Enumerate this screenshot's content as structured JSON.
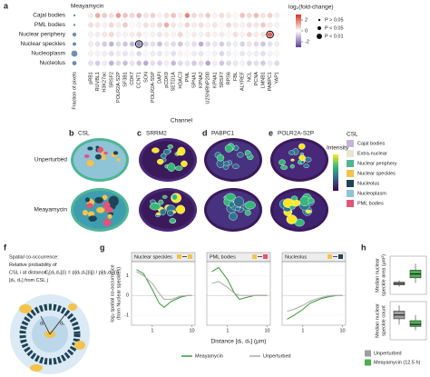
{
  "panel_a": {
    "label": "a",
    "title": "Meayamycin",
    "x_label": "Channel",
    "fraction_label": "Fraction of pixels",
    "rows": [
      "Cajal bodies",
      "PML bodies",
      "Nuclear periphery",
      "Nuclear speckles",
      "Nucleoplasm",
      "Nucleolus"
    ],
    "columns": [
      "pRB1",
      "RUVBL1",
      "H3K27ac",
      "SRSF2",
      "POLR2A-S2P",
      "SF3B1",
      "CDK7",
      "CCNT1",
      "SON",
      "POLR2A-S5P",
      "DAPI",
      "pCDK9",
      "SETD1A",
      "HDAC3",
      "PML",
      "SPNA1",
      "KPNA2",
      "U2SNRNP200",
      "KPNA1",
      "SRSF7",
      "RPS6",
      "FBL",
      "ALYREF",
      "NCL",
      "PCNA",
      "LMNB1",
      "PABPC1",
      "YAP1"
    ],
    "fraction": [
      0.05,
      0.05,
      0.3,
      0.25,
      0.6,
      0.35
    ],
    "values": [
      [
        0.3,
        1.2,
        0.8,
        0.5,
        1.5,
        0.9,
        0.6,
        1.1,
        0.4,
        0.7,
        0.2,
        0.5,
        0.9,
        0.3,
        1.8,
        0.6,
        0.4,
        0.8,
        0.2,
        0.5,
        0.3,
        0.1,
        0.9,
        0.6,
        1.0,
        0.4,
        0.7,
        0.3
      ],
      [
        0.5,
        0.4,
        0.2,
        0.6,
        0.3,
        0.8,
        0.1,
        0.2,
        0.5,
        0.3,
        0.6,
        1.2,
        0.4,
        0.2,
        0.7,
        0.3,
        0.5,
        0.2,
        0.4,
        0.1,
        0.6,
        0.3,
        0.2,
        0.5,
        0.4,
        0.8,
        0.3,
        0.2
      ],
      [
        0.2,
        -0.3,
        0.4,
        0.6,
        0.2,
        -0.2,
        0.3,
        0.5,
        0.1,
        0.2,
        -0.4,
        0.3,
        0.2,
        0.6,
        0.1,
        0.3,
        -0.2,
        0.4,
        0.2,
        0.3,
        0.1,
        0.5,
        0.2,
        0.7,
        0.3,
        0.4,
        2.3,
        0.2
      ],
      [
        -0.3,
        -0.5,
        -0.8,
        -1.2,
        -0.6,
        -0.9,
        -1.1,
        -1.8,
        -0.7,
        -0.5,
        -1.0,
        -0.4,
        -0.6,
        -0.9,
        -0.3,
        -0.5,
        -1.3,
        -0.6,
        -0.4,
        -0.8,
        -0.5,
        -0.3,
        -0.7,
        -0.4,
        -0.6,
        -0.9,
        -0.5,
        -0.3
      ],
      [
        0.2,
        -0.2,
        0.3,
        -0.5,
        -0.3,
        -0.4,
        -0.2,
        -0.6,
        -0.1,
        -0.3,
        -0.4,
        -0.2,
        -0.5,
        -0.2,
        0.1,
        -0.3,
        -0.4,
        -0.1,
        -0.2,
        -0.6,
        -0.3,
        -0.1,
        -0.4,
        -0.2,
        -0.3,
        -0.5,
        -0.2,
        -0.1
      ],
      [
        -0.5,
        -0.8,
        -0.3,
        -1.2,
        -0.6,
        -1.0,
        -0.4,
        -0.9,
        -1.3,
        -0.5,
        -0.7,
        -0.3,
        -1.1,
        -0.6,
        -0.4,
        -0.8,
        -0.5,
        -1.4,
        -0.3,
        -0.9,
        -0.6,
        -0.4,
        -0.2,
        -0.7,
        -0.5,
        -0.8,
        -0.3,
        -0.6
      ]
    ],
    "outlined": [
      [
        3,
        7
      ],
      [
        2,
        26
      ]
    ],
    "colorbar": {
      "label": "log₂(fold-change)",
      "lim": [
        -3,
        3
      ],
      "ticks": [
        2,
        0,
        -2
      ]
    },
    "p_legend": [
      "P > 0.05",
      "P < 0.05",
      "P < 0.01"
    ]
  },
  "panel_images": {
    "rows": [
      "Unperturbed",
      "Meayamycin"
    ],
    "tiles": [
      {
        "label": "b",
        "title": "CSL"
      },
      {
        "label": "c",
        "title": "SRRM2"
      },
      {
        "label": "d",
        "title": "PABPC1"
      },
      {
        "label": "e",
        "title": "POLR2A-S2P"
      }
    ],
    "intensity_label": "Intensity",
    "csl_legend": {
      "title": "CSL",
      "items": [
        {
          "name": "Cajal bodies",
          "color": "#c7b3dc"
        },
        {
          "name": "Extra-nuclear",
          "color": "#e9e4d4"
        },
        {
          "name": "Nuclear periphery",
          "color": "#4fb595"
        },
        {
          "name": "Nuclear speckles",
          "color": "#f3c34d"
        },
        {
          "name": "Nucleolus",
          "color": "#1e4457"
        },
        {
          "name": "Nucleoplasm",
          "color": "#8fc3d6"
        },
        {
          "name": "PML bodies",
          "color": "#e4537a"
        }
      ]
    }
  },
  "panel_f": {
    "label": "f",
    "lines": [
      "Spatial co-occurrence:",
      "Relative probability of",
      "CSL i at distance",
      "[dᵣ, dₛ] from CSL j"
    ],
    "formula": "Cⱼ[dᵣ,dₛ](i) = p[dᵣ,dₛ](i|j) / p[dᵣ,dₛ](i)",
    "diagram_labels": [
      "dᵣ",
      "dₛ"
    ]
  },
  "panel_g": {
    "label": "g",
    "y_label": "log₂ spatial co-occurrence",
    "y_label2": "(from Nuclear speckles)",
    "x_label": "Distance [dᵣ, dₛ] (μm)",
    "xscale": "log",
    "xlim": [
      0.3,
      12
    ],
    "xticks": [
      1,
      10
    ],
    "ylim": [
      -1.5,
      1.7
    ],
    "yticks": [
      -1,
      0,
      1
    ],
    "x": [
      0.4,
      0.6,
      1,
      1.5,
      2,
      3,
      5,
      8,
      10
    ],
    "panels": [
      {
        "title": "Nuclear speckles",
        "series": [
          {
            "name": "Meayamycin",
            "color": "#3a9a3a",
            "values": [
              1.3,
              1.1,
              0.3,
              -0.4,
              -0.6,
              -0.3,
              -0.1,
              0,
              0
            ]
          },
          {
            "name": "Unperturbed",
            "color": "#aaaaaa",
            "values": [
              1.2,
              1.0,
              0.6,
              0.1,
              -0.2,
              -0.2,
              -0.05,
              0,
              0
            ]
          }
        ]
      },
      {
        "title": "PML bodies",
        "series": [
          {
            "name": "Meayamycin",
            "color": "#3a9a3a",
            "values": [
              1.2,
              1.4,
              0.8,
              0.1,
              -0.2,
              -0.1,
              0,
              0,
              0
            ]
          },
          {
            "name": "Unperturbed",
            "color": "#aaaaaa",
            "values": [
              0.6,
              0.7,
              0.4,
              0.1,
              0,
              0,
              0,
              0,
              0
            ]
          }
        ]
      },
      {
        "title": "Nucleolus",
        "series": [
          {
            "name": "Meayamycin",
            "color": "#3a9a3a",
            "values": [
              -1.2,
              -1.0,
              -0.7,
              -0.4,
              -0.3,
              -0.15,
              -0.05,
              0,
              0
            ]
          },
          {
            "name": "Unperturbed",
            "color": "#aaaaaa",
            "values": [
              -0.8,
              -0.7,
              -0.5,
              -0.3,
              -0.2,
              -0.1,
              0,
              0,
              0
            ]
          }
        ]
      }
    ]
  },
  "panel_h": {
    "label": "h",
    "groups": [
      {
        "name": "Unperturbed",
        "color": "#9e9e9e"
      },
      {
        "name": "Meayamycin (12.5 h)",
        "color": "#4caf50"
      }
    ],
    "plots": [
      {
        "y_label": "Median nuclear",
        "y_label2": "speckle area (μm²)",
        "ylim": [
          0,
          3
        ],
        "boxes": [
          [
            0.6,
            0.75,
            0.85,
            0.95,
            1.1
          ],
          [
            0.9,
            1.3,
            1.6,
            1.9,
            2.4
          ]
        ]
      },
      {
        "y_label": "Median nuclear",
        "y_label2": "speckle count",
        "ylim": [
          0,
          20
        ],
        "boxes": [
          [
            8,
            11,
            13,
            15,
            18
          ],
          [
            5,
            7,
            8,
            10,
            13
          ]
        ]
      }
    ]
  }
}
